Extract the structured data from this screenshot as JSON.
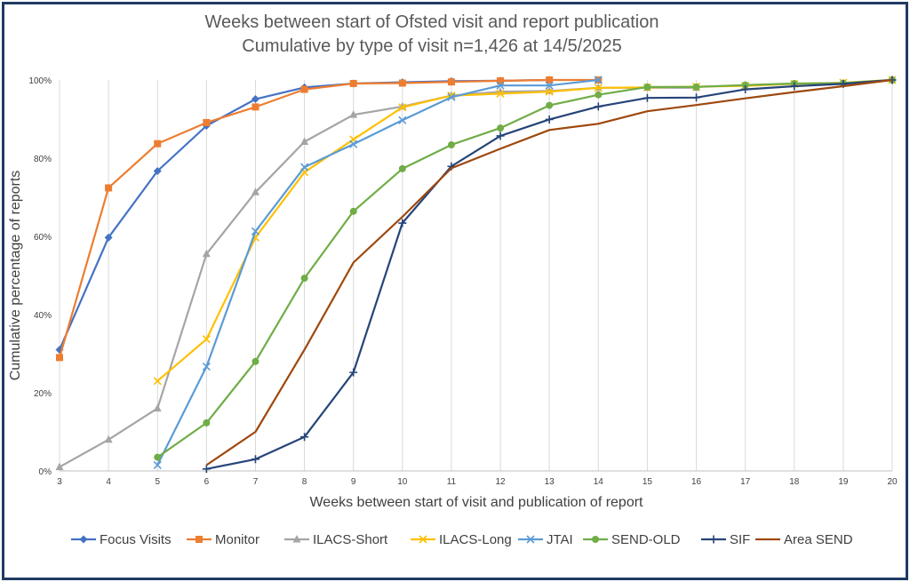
{
  "chart_data": {
    "type": "line",
    "title_line1": "Weeks between start of Ofsted visit and report publication",
    "title_line2": "Cumulative by type of visit n=1,426 at 14/5/2025",
    "xlabel": "Weeks between start of visit and publication of report",
    "ylabel": "Cumulative percentage of reports",
    "xlim": [
      3,
      20
    ],
    "ylim": [
      0,
      100
    ],
    "x_ticks": [
      "3",
      "4",
      "5",
      "6",
      "7",
      "8",
      "9",
      "10",
      "11",
      "12",
      "13",
      "14",
      "15",
      "16",
      "17",
      "18",
      "19",
      "20"
    ],
    "y_ticks": [
      "0%",
      "20%",
      "40%",
      "60%",
      "80%",
      "100%"
    ],
    "grid": "vertical",
    "legend_position": "bottom",
    "series": [
      {
        "name": "Focus Visits",
        "color": "#4472C4",
        "marker": "diamond",
        "points": [
          [
            3,
            31
          ],
          [
            4,
            59.7
          ],
          [
            5,
            76.7
          ],
          [
            6,
            88.3
          ],
          [
            7,
            95.1
          ],
          [
            8,
            98.1
          ],
          [
            9,
            99.1
          ],
          [
            10,
            99.4
          ],
          [
            11,
            99.7
          ],
          [
            12,
            99.8
          ],
          [
            13,
            100
          ]
        ]
      },
      {
        "name": "Monitor",
        "color": "#ED7D31",
        "marker": "square",
        "points": [
          [
            3,
            29
          ],
          [
            4,
            72.4
          ],
          [
            5,
            83.7
          ],
          [
            6,
            89.1
          ],
          [
            7,
            93.1
          ],
          [
            8,
            97.6
          ],
          [
            9,
            99.1
          ],
          [
            10,
            99.2
          ],
          [
            11,
            99.5
          ],
          [
            12,
            99.8
          ],
          [
            13,
            100
          ],
          [
            14,
            100
          ]
        ]
      },
      {
        "name": "ILACS-Short",
        "color": "#A5A5A5",
        "marker": "triangle",
        "points": [
          [
            3,
            1
          ],
          [
            4,
            8
          ],
          [
            5,
            16
          ],
          [
            6,
            55.5
          ],
          [
            7,
            71.3
          ],
          [
            8,
            84.2
          ],
          [
            9,
            91.1
          ],
          [
            10,
            93.2
          ],
          [
            11,
            96
          ],
          [
            12,
            97
          ],
          [
            13,
            97.2
          ],
          [
            14,
            98
          ],
          [
            15,
            98
          ],
          [
            16,
            98
          ]
        ]
      },
      {
        "name": "ILACS-Long",
        "color": "#FFC000",
        "marker": "x",
        "points": [
          [
            5,
            23
          ],
          [
            6,
            33.7
          ],
          [
            7,
            59.7
          ],
          [
            8,
            76.4
          ],
          [
            9,
            84.8
          ],
          [
            10,
            93
          ],
          [
            11,
            96
          ],
          [
            12,
            96.5
          ],
          [
            13,
            97
          ],
          [
            14,
            98
          ],
          [
            15,
            98.1
          ],
          [
            16,
            98.3
          ],
          [
            17,
            98.5
          ],
          [
            18,
            99
          ],
          [
            19,
            99.3
          ],
          [
            20,
            100
          ]
        ]
      },
      {
        "name": "JTAI",
        "color": "#5B9BD5",
        "marker": "x",
        "points": [
          [
            5,
            1.5
          ],
          [
            6,
            26.7
          ],
          [
            7,
            61.3
          ],
          [
            8,
            77.7
          ],
          [
            9,
            83.6
          ],
          [
            10,
            89.7
          ],
          [
            11,
            95.6
          ],
          [
            12,
            98.6
          ],
          [
            13,
            98.6
          ],
          [
            14,
            100
          ]
        ]
      },
      {
        "name": "SEND-OLD",
        "color": "#70AD47",
        "marker": "circle",
        "points": [
          [
            5,
            3.5
          ],
          [
            6,
            12.3
          ],
          [
            7,
            28
          ],
          [
            8,
            49.3
          ],
          [
            9,
            66.4
          ],
          [
            10,
            77.3
          ],
          [
            11,
            83.4
          ],
          [
            12,
            87.7
          ],
          [
            13,
            93.5
          ],
          [
            14,
            96.2
          ],
          [
            15,
            98.2
          ],
          [
            16,
            98.2
          ],
          [
            17,
            98.7
          ],
          [
            18,
            99.1
          ],
          [
            19,
            99.2
          ],
          [
            20,
            100
          ]
        ]
      },
      {
        "name": "SIF",
        "color": "#264478",
        "marker": "plus",
        "points": [
          [
            6,
            0.5
          ],
          [
            7,
            3
          ],
          [
            8,
            8.7
          ],
          [
            9,
            25.2
          ],
          [
            10,
            63.4
          ],
          [
            11,
            77.9
          ],
          [
            12,
            85.7
          ],
          [
            13,
            89.9
          ],
          [
            14,
            93.2
          ],
          [
            15,
            95.4
          ],
          [
            16,
            95.5
          ],
          [
            17,
            97.6
          ],
          [
            18,
            98.4
          ],
          [
            19,
            99
          ],
          [
            20,
            100
          ]
        ]
      },
      {
        "name": "Area SEND",
        "color": "#9E480E",
        "marker": "none",
        "points": [
          [
            6,
            1.5
          ],
          [
            7,
            10
          ],
          [
            8,
            31
          ],
          [
            9,
            53.3
          ],
          [
            10,
            65
          ],
          [
            11,
            77.4
          ],
          [
            12,
            82.4
          ],
          [
            13,
            87.2
          ],
          [
            14,
            88.8
          ],
          [
            15,
            92
          ],
          [
            16,
            93.6
          ],
          [
            17,
            95.3
          ],
          [
            18,
            96.9
          ],
          [
            19,
            98.4
          ],
          [
            20,
            100
          ]
        ]
      }
    ]
  }
}
